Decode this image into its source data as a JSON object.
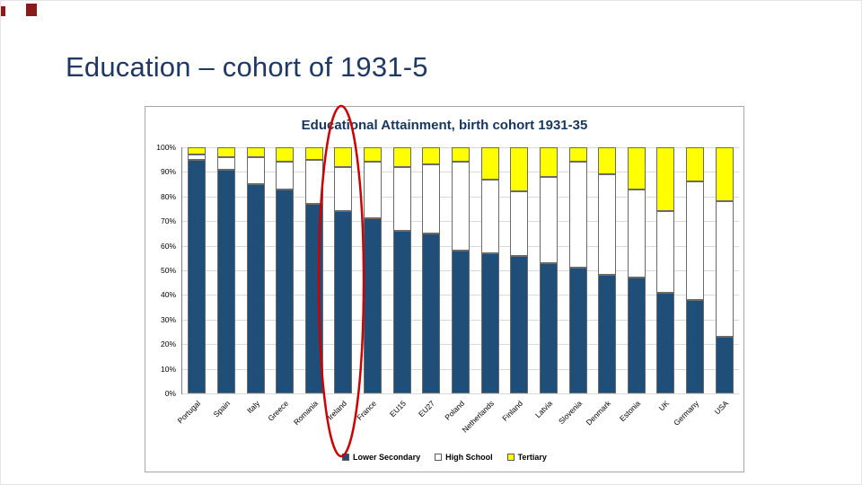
{
  "slide": {
    "title": "Education – cohort of 1931-5"
  },
  "theme": {
    "accent_color": "#8b1a1a",
    "title_color": "#1f3864",
    "ellipse_color": "#cc0000"
  },
  "chart_data": {
    "type": "bar",
    "stacked": true,
    "title": "Educational Attainment, birth cohort 1931-35",
    "categories": [
      "Portugal",
      "Spain",
      "Italy",
      "Greece",
      "Romania",
      "Ireland",
      "France",
      "EU15",
      "EU27",
      "Poland",
      "Netherlands",
      "Finland",
      "Latvia",
      "Slovenia",
      "Denmark",
      "Estonia",
      "UK",
      "Germany",
      "USA"
    ],
    "series": [
      {
        "name": "Lower Secondary",
        "color": "#1f4e79",
        "values": [
          95,
          91,
          85,
          83,
          77,
          74,
          71,
          66,
          65,
          58,
          57,
          56,
          53,
          51,
          48,
          47,
          41,
          38,
          23
        ]
      },
      {
        "name": "High School",
        "color": "#ffffff",
        "values": [
          2,
          5,
          11,
          11,
          18,
          18,
          23,
          26,
          28,
          36,
          30,
          26,
          35,
          43,
          41,
          36,
          33,
          48,
          55
        ]
      },
      {
        "name": "Tertiary",
        "color": "#ffff00",
        "values": [
          3,
          4,
          4,
          6,
          5,
          8,
          6,
          8,
          7,
          6,
          13,
          18,
          12,
          6,
          11,
          17,
          26,
          14,
          22
        ]
      }
    ],
    "xlabel": "",
    "ylabel": "",
    "ylim": [
      0,
      100
    ],
    "ytick_step": 10,
    "ytick_suffix": "%",
    "grid": true,
    "legend_position": "bottom"
  },
  "annotation": {
    "shape": "ellipse",
    "target_category": "Ireland"
  }
}
